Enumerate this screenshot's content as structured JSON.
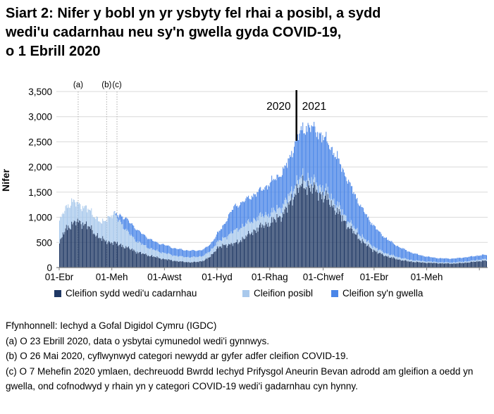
{
  "title_lines": [
    "Siart 2: Nifer y bobl yn yr ysbyty fel rhai a posibl, a sydd",
    "wedi'u cadarnhau neu sy'n gwella gyda COVID-19,",
    "o 1 Ebrill 2020"
  ],
  "colors": {
    "confirmed": "#1F3864",
    "possible": "#A9C9EC",
    "recovering": "#4A86E8",
    "gridline": "#D9D9D9",
    "axis": "#7F7F7F",
    "annotation_line": "#AFAFAF",
    "year_line": "#000000"
  },
  "legend": [
    {
      "label": "Cleifion sydd wedi'u cadarnhau",
      "color": "#1F3864"
    },
    {
      "label": "Cleifion posibl",
      "color": "#A9C9EC"
    },
    {
      "label": "Cleifion sy'n gwella",
      "color": "#4A86E8"
    }
  ],
  "footnotes": [
    "Ffynhonnell: Iechyd a Gofal Digidol Cymru (IGDC)",
    "(a) O 23 Ebrill 2020, data o ysbytai cymunedol wedi'i gynnwys.",
    "(b) O 26 Mai 2020, cyflwynwyd categori newydd ar gyfer adfer cleifion COVID-19.",
    "(c) O 7 Mehefin 2020 ymlaen, dechreuodd Bwrdd Iechyd Prifysgol Aneurin Bevan adrodd am gleifion a oedd yn gwella, ond cofnodwyd y rhain yn y categori COVID-19 wedi'i gadarnhau cyn hynny."
  ],
  "chart_data": {
    "type": "bar",
    "stacked": true,
    "ylabel": "Nifer",
    "ylim": [
      0,
      3500
    ],
    "ytick_step": 500,
    "ytick_labels": [
      "0",
      "500",
      "1,000",
      "1,500",
      "2,000",
      "2,500",
      "3,000",
      "3,500"
    ],
    "x_start_date": "2020-04-01",
    "x_step_days": 7,
    "x_end_date": "2021-08-09",
    "xticks": [
      {
        "label": "01-Ebr",
        "date": "2020-04-01"
      },
      {
        "label": "01-Meh",
        "date": "2020-06-01"
      },
      {
        "label": "01-Awst",
        "date": "2020-08-01"
      },
      {
        "label": "01-Hyd",
        "date": "2020-10-01"
      },
      {
        "label": "01-Rhag",
        "date": "2020-12-01"
      },
      {
        "label": "01-Chwef",
        "date": "2021-02-01"
      },
      {
        "label": "01-Ebr",
        "date": "2021-04-01"
      },
      {
        "label": "01-Meh",
        "date": "2021-06-01"
      },
      {
        "label": "",
        "date": "2021-08-01"
      }
    ],
    "annotations": [
      {
        "label": "(a)",
        "date": "2020-04-23"
      },
      {
        "label": "(b)",
        "date": "2020-05-26"
      },
      {
        "label": "(c)",
        "date": "2020-06-07"
      }
    ],
    "year_divider": {
      "date": "2021-01-01",
      "left_label": "2020",
      "right_label": "2021"
    },
    "gridlines": true,
    "legend_position": "bottom",
    "series": [
      {
        "name": "Cleifion sydd wedi'u cadarnhau",
        "color": "#1F3864",
        "values": [
          480,
          770,
          860,
          910,
          880,
          790,
          660,
          560,
          515,
          490,
          460,
          400,
          360,
          300,
          270,
          235,
          205,
          175,
          155,
          135,
          120,
          110,
          105,
          115,
          145,
          220,
          380,
          430,
          465,
          470,
          545,
          625,
          715,
          790,
          850,
          895,
          980,
          1065,
          1240,
          1500,
          1615,
          1630,
          1560,
          1480,
          1400,
          1270,
          1120,
          950,
          800,
          660,
          540,
          430,
          350,
          280,
          235,
          195,
          165,
          140,
          120,
          110,
          100,
          95,
          90,
          85,
          82,
          80,
          85,
          95,
          105,
          120,
          135
        ]
      },
      {
        "name": "Cleifion posibl",
        "color": "#A9C9EC",
        "values": [
          420,
          420,
          450,
          350,
          340,
          330,
          350,
          305,
          490,
          560,
          480,
          330,
          270,
          200,
          175,
          145,
          130,
          125,
          115,
          105,
          100,
          100,
          100,
          100,
          100,
          110,
          120,
          130,
          190,
          255,
          255,
          245,
          225,
          215,
          200,
          185,
          180,
          175,
          170,
          165,
          160,
          155,
          150,
          145,
          140,
          135,
          130,
          120,
          110,
          100,
          90,
          80,
          70,
          60,
          55,
          50,
          45,
          40,
          35,
          30,
          28,
          25,
          22,
          20,
          20,
          20,
          22,
          25,
          25,
          28,
          30
        ]
      },
      {
        "name": "Cleifion sy'n gwella",
        "color": "#4A86E8",
        "values": [
          0,
          0,
          0,
          0,
          0,
          0,
          0,
          0,
          0,
          0,
          120,
          230,
          240,
          225,
          205,
          180,
          165,
          165,
          155,
          145,
          140,
          135,
          130,
          125,
          125,
          135,
          155,
          240,
          380,
          490,
          480,
          485,
          495,
          505,
          545,
          610,
          640,
          665,
          730,
          815,
          945,
          1015,
          1060,
          1040,
          1010,
          970,
          920,
          855,
          760,
          660,
          570,
          490,
          420,
          355,
          300,
          255,
          215,
          185,
          155,
          130,
          110,
          95,
          85,
          80,
          78,
          78,
          80,
          82,
          85,
          85,
          85
        ]
      }
    ]
  }
}
